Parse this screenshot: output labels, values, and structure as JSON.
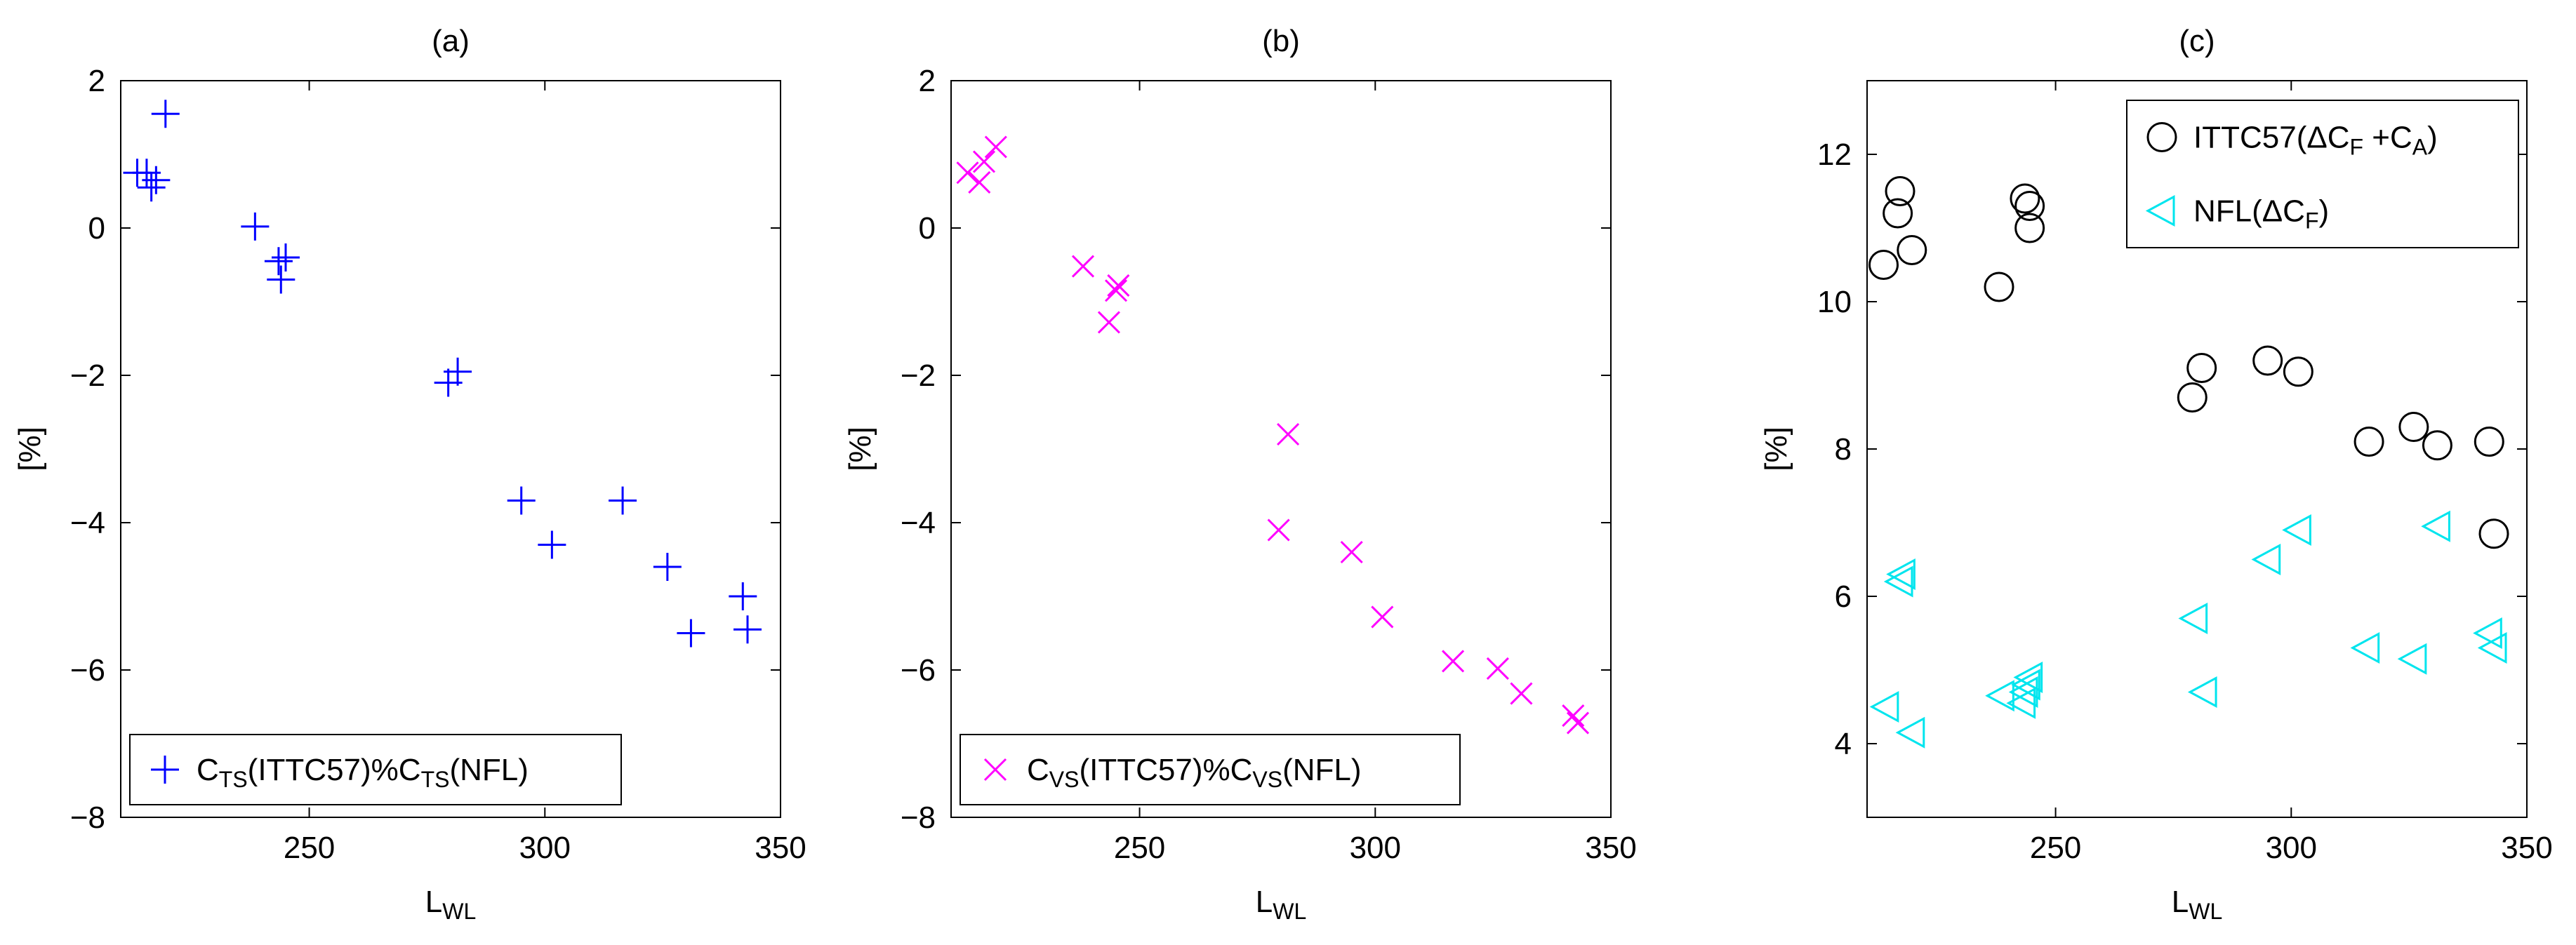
{
  "chart_data": [
    {
      "type": "scatter",
      "title": "(a)",
      "xlabel": {
        "main": "L",
        "sub": "WL"
      },
      "ylabel": "[%]",
      "xlim": [
        210,
        350
      ],
      "ylim": [
        -8,
        2
      ],
      "xticks": [
        250,
        300,
        350
      ],
      "yticks": [
        -8,
        -6,
        -4,
        -2,
        0,
        2
      ],
      "grid": false,
      "legend_position": "bottom-left",
      "series": [
        {
          "name": "C_TS(ITTC57)%C_TS(NFL)",
          "name_parts": [
            {
              "t": "C",
              "sub": false
            },
            {
              "t": "TS",
              "sub": true
            },
            {
              "t": "(ITTC57)%C",
              "sub": false
            },
            {
              "t": "TS",
              "sub": true
            },
            {
              "t": "(NFL)",
              "sub": false
            }
          ],
          "marker": "plus",
          "color": "#0000ff",
          "x": [
            213.5,
            215.5,
            216.5,
            217.5,
            219.5,
            238.5,
            243.5,
            244,
            245,
            279.5,
            281.5,
            295,
            301.5,
            316.5,
            326,
            331,
            342,
            343
          ],
          "y": [
            0.75,
            0.75,
            0.55,
            0.65,
            1.55,
            0.02,
            -0.45,
            -0.7,
            -0.4,
            -2.1,
            -1.95,
            -3.7,
            -4.3,
            -3.7,
            -4.6,
            -5.5,
            -5.0,
            -5.45
          ]
        }
      ]
    },
    {
      "type": "scatter",
      "title": "(b)",
      "xlabel": {
        "main": "L",
        "sub": "WL"
      },
      "ylabel": "[%]",
      "xlim": [
        210,
        350
      ],
      "ylim": [
        -8,
        2
      ],
      "xticks": [
        250,
        300,
        350
      ],
      "yticks": [
        -8,
        -6,
        -4,
        -2,
        0,
        2
      ],
      "grid": false,
      "legend_position": "bottom-left",
      "series": [
        {
          "name": "C_VS(ITTC57)%C_VS(NFL)",
          "name_parts": [
            {
              "t": "C",
              "sub": false
            },
            {
              "t": "VS",
              "sub": true
            },
            {
              "t": "(ITTC57)%C",
              "sub": false
            },
            {
              "t": "VS",
              "sub": true
            },
            {
              "t": "(NFL)",
              "sub": false
            }
          ],
          "marker": "x",
          "color": "#ff00ff",
          "x": [
            213.5,
            216,
            217,
            219.5,
            238,
            243.5,
            245,
            245.5,
            279.5,
            281.5,
            295,
            301.5,
            316.5,
            326,
            331,
            342,
            343
          ],
          "y": [
            0.75,
            0.62,
            0.9,
            1.1,
            -0.52,
            -1.28,
            -0.85,
            -0.78,
            -4.1,
            -2.8,
            -4.4,
            -5.28,
            -5.88,
            -5.98,
            -6.32,
            -6.62,
            -6.72
          ]
        }
      ]
    },
    {
      "type": "scatter",
      "title": "(c)",
      "xlabel": {
        "main": "L",
        "sub": "WL"
      },
      "ylabel": "[%]",
      "xlim": [
        210,
        350
      ],
      "ylim": [
        3,
        13
      ],
      "xticks": [
        250,
        300,
        350
      ],
      "yticks": [
        4,
        6,
        8,
        10,
        12
      ],
      "grid": false,
      "legend_position": "top-right",
      "series": [
        {
          "name": "ITTC57(ΔC_F +C_A)",
          "name_parts": [
            {
              "t": "ITTC57(ΔC",
              "sub": false
            },
            {
              "t": "F",
              "sub": true
            },
            {
              "t": " +C",
              "sub": false
            },
            {
              "t": "A",
              "sub": true
            },
            {
              "t": ")",
              "sub": false
            }
          ],
          "marker": "circle",
          "color": "#000000",
          "x": [
            213.5,
            216.5,
            217,
            219.5,
            238,
            243.5,
            244.5,
            244.5,
            279,
            281,
            295,
            301.5,
            316.5,
            326,
            331,
            342,
            343
          ],
          "y": [
            10.5,
            11.2,
            11.5,
            10.7,
            10.2,
            11.4,
            11.0,
            11.3,
            8.7,
            9.1,
            9.2,
            9.05,
            8.1,
            8.3,
            8.05,
            8.1,
            6.85
          ]
        },
        {
          "name": "NFL(ΔC_F)",
          "name_parts": [
            {
              "t": "NFL(ΔC",
              "sub": false
            },
            {
              "t": "F",
              "sub": true
            },
            {
              "t": ")",
              "sub": false
            }
          ],
          "marker": "triangle-left",
          "color": "#00e5ee",
          "x": [
            214,
            217,
            217.5,
            219.5,
            238.5,
            243,
            243.5,
            244,
            244.5,
            279.5,
            281.5,
            295,
            301.5,
            316,
            326,
            331,
            342,
            343
          ],
          "y": [
            4.5,
            6.2,
            6.3,
            4.15,
            4.65,
            4.55,
            4.7,
            4.8,
            4.9,
            5.7,
            4.7,
            6.5,
            6.9,
            5.3,
            5.15,
            6.95,
            5.5,
            5.3
          ]
        }
      ]
    }
  ]
}
